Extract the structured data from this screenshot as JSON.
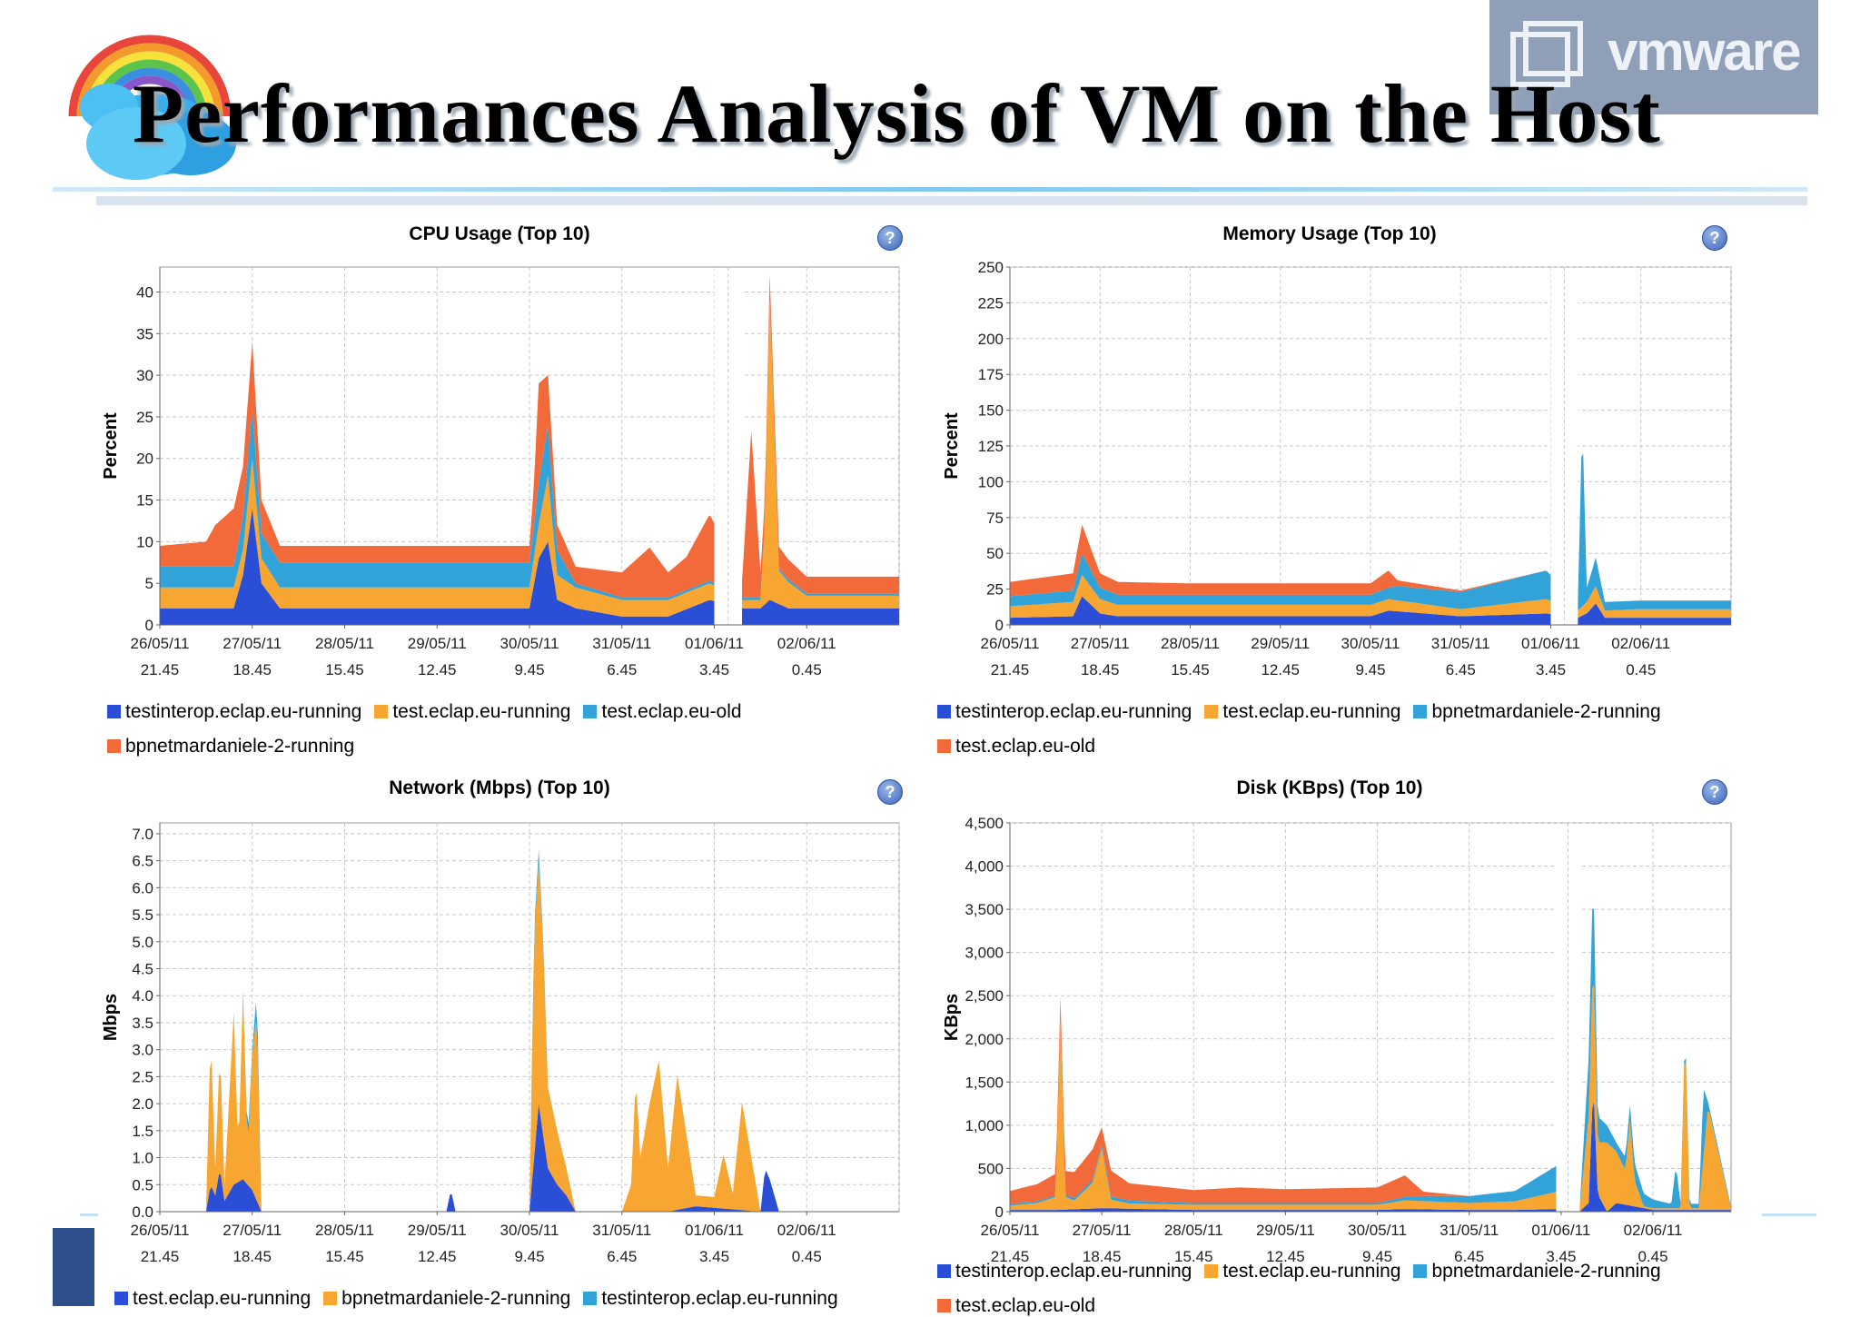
{
  "slide": {
    "title": "Performances Analysis of VM on the Host",
    "vmware_logo": "vmware",
    "colors": {
      "blue": "#2a4fd6",
      "orange": "#f7a631",
      "teal": "#32a3d8",
      "red": "#f26a3a"
    }
  },
  "chart_data": [
    {
      "id": "cpu",
      "type": "area",
      "title": "CPU Usage (Top 10)",
      "ylabel": "Percent",
      "xlabel": "",
      "ylim": [
        0,
        43
      ],
      "yticks": [
        0,
        5,
        10,
        15,
        20,
        25,
        30,
        35,
        40
      ],
      "x_ticks": [
        [
          "26/05/11",
          "21.45"
        ],
        [
          "27/05/11",
          "18.45"
        ],
        [
          "28/05/11",
          "15.45"
        ],
        [
          "29/05/11",
          "12.45"
        ],
        [
          "30/05/11",
          "9.45"
        ],
        [
          "31/05/11",
          "6.45"
        ],
        [
          "01/06/11",
          "3.45"
        ],
        [
          "02/06/11",
          "0.45"
        ]
      ],
      "x_range": [
        0,
        8
      ],
      "gaps": [
        [
          6.0,
          6.3
        ]
      ],
      "grid": true,
      "stacked": true,
      "series": [
        {
          "name": "testinterop.eclap.eu-running",
          "color": "#2a4fd6",
          "x": [
            0,
            0.8,
            0.9,
            1.0,
            1.1,
            1.3,
            2,
            3,
            4,
            4.1,
            4.2,
            4.3,
            4.5,
            5,
            5.5,
            5.95,
            6.3,
            6.5,
            6.6,
            6.8,
            7,
            7.5,
            7.9
          ],
          "y": [
            2,
            2,
            6,
            14,
            5,
            2,
            2,
            2,
            2,
            8,
            10,
            3,
            2,
            1,
            1,
            3,
            2,
            2,
            3,
            2,
            2,
            2,
            2
          ]
        },
        {
          "name": "test.eclap.eu-running",
          "color": "#f7a631",
          "x": [
            0,
            0.8,
            0.9,
            1.0,
            1.1,
            1.3,
            2,
            3,
            4,
            4.1,
            4.2,
            4.3,
            4.5,
            5,
            5.5,
            5.95,
            6.3,
            6.5,
            6.55,
            6.6,
            6.7,
            7,
            7.5,
            7.9
          ],
          "y": [
            2.5,
            2.5,
            3,
            6,
            3,
            2.5,
            2.5,
            2.5,
            2.5,
            4,
            8,
            3,
            2.5,
            2,
            2,
            2,
            1,
            1,
            10,
            36,
            4,
            1.5,
            1.5,
            1.5
          ]
        },
        {
          "name": "test.eclap.eu-old",
          "color": "#32a3d8",
          "x": [
            0,
            0.8,
            0.9,
            1.0,
            1.1,
            1.3,
            2,
            3,
            4,
            4.1,
            4.2,
            4.3,
            4.5,
            5,
            5.5,
            5.95,
            6.3,
            7,
            7.9
          ],
          "y": [
            2.5,
            2.5,
            4,
            6,
            3,
            3,
            3,
            3,
            3,
            5,
            6,
            3,
            0.5,
            0.3,
            0.3,
            0.3,
            0.3,
            0.3,
            0.3
          ]
        },
        {
          "name": "bpnetmardaniele-2-running",
          "color": "#f26a3a",
          "x": [
            0,
            0.5,
            0.6,
            0.8,
            0.9,
            1.0,
            1.1,
            1.3,
            2,
            3,
            4,
            4.05,
            4.1,
            4.2,
            4.3,
            4.5,
            5,
            5.2,
            5.3,
            5.5,
            5.7,
            5.95,
            6.3,
            6.4,
            6.5,
            7,
            7.9
          ],
          "y": [
            2.5,
            3,
            5,
            7,
            6,
            8,
            4,
            2,
            2,
            2,
            2,
            5,
            12,
            6,
            3,
            2,
            3,
            5,
            6,
            3,
            4,
            8,
            2,
            20,
            3,
            2,
            2
          ]
        }
      ]
    },
    {
      "id": "memory",
      "type": "area",
      "title": "Memory Usage (Top 10)",
      "ylabel": "Percent",
      "xlabel": "",
      "ylim": [
        0,
        250
      ],
      "yticks": [
        0,
        25,
        50,
        75,
        100,
        125,
        150,
        175,
        200,
        225,
        250
      ],
      "x_ticks": [
        [
          "26/05/11",
          "21.45"
        ],
        [
          "27/05/11",
          "18.45"
        ],
        [
          "28/05/11",
          "15.45"
        ],
        [
          "29/05/11",
          "12.45"
        ],
        [
          "30/05/11",
          "9.45"
        ],
        [
          "31/05/11",
          "6.45"
        ],
        [
          "01/06/11",
          "3.45"
        ],
        [
          "02/06/11",
          "0.45"
        ]
      ],
      "x_range": [
        0,
        8
      ],
      "gaps": [
        [
          6.0,
          6.3
        ]
      ],
      "grid": true,
      "stacked": true,
      "series": [
        {
          "name": "testinterop.eclap.eu-running",
          "color": "#2a4fd6",
          "x": [
            0,
            0.7,
            0.8,
            1.0,
            1.2,
            2,
            3,
            4,
            4.2,
            5,
            5.95,
            6.3,
            6.4,
            6.5,
            6.6,
            7,
            7.9
          ],
          "y": [
            5,
            6,
            20,
            8,
            6,
            6,
            6,
            6,
            10,
            6,
            8,
            5,
            8,
            15,
            5,
            5,
            5
          ]
        },
        {
          "name": "test.eclap.eu-running",
          "color": "#f7a631",
          "x": [
            0,
            0.7,
            0.8,
            1.0,
            1.2,
            2,
            3,
            4,
            4.2,
            5,
            5.95,
            6.3,
            6.4,
            6.5,
            6.6,
            7,
            7.9
          ],
          "y": [
            8,
            10,
            15,
            10,
            8,
            8,
            8,
            8,
            8,
            5,
            10,
            5,
            8,
            12,
            5,
            6,
            6
          ]
        },
        {
          "name": "bpnetmardaniele-2-running",
          "color": "#32a3d8",
          "x": [
            0,
            0.7,
            0.8,
            1.0,
            1.2,
            2,
            3,
            4,
            4.2,
            4.3,
            5,
            5.95,
            6.3,
            6.35,
            6.4,
            6.5,
            6.6,
            7,
            7.9
          ],
          "y": [
            7,
            8,
            15,
            8,
            7,
            7,
            7,
            7,
            8,
            10,
            12,
            20,
            5,
            130,
            10,
            20,
            6,
            6,
            6
          ]
        },
        {
          "name": "test.eclap.eu-old",
          "color": "#f26a3a",
          "x": [
            0,
            0.7,
            0.8,
            1.0,
            1.2,
            2,
            3,
            4,
            4.2,
            4.3,
            5,
            5.95,
            6.3,
            7,
            7.9
          ],
          "y": [
            10,
            12,
            20,
            10,
            9,
            8,
            8,
            8,
            12,
            4,
            1,
            0,
            0,
            0,
            0
          ]
        }
      ]
    },
    {
      "id": "network",
      "type": "area",
      "title": "Network (Mbps) (Top 10)",
      "ylabel": "Mbps",
      "xlabel": "",
      "ylim": [
        0,
        7.2
      ],
      "yticks": [
        0.0,
        0.5,
        1.0,
        1.5,
        2.0,
        2.5,
        3.0,
        3.5,
        4.0,
        4.5,
        5.0,
        5.5,
        6.0,
        6.5,
        7.0
      ],
      "tick_format": 1,
      "x_ticks": [
        [
          "26/05/11",
          "21.45"
        ],
        [
          "27/05/11",
          "18.45"
        ],
        [
          "28/05/11",
          "15.45"
        ],
        [
          "29/05/11",
          "12.45"
        ],
        [
          "30/05/11",
          "9.45"
        ],
        [
          "31/05/11",
          "6.45"
        ],
        [
          "01/06/11",
          "3.45"
        ],
        [
          "02/06/11",
          "0.45"
        ]
      ],
      "x_range": [
        0,
        8
      ],
      "gaps": [],
      "grid": true,
      "stacked": true,
      "series": [
        {
          "name": "test.eclap.eu-running",
          "color": "#2a4fd6",
          "x": [
            0,
            0.5,
            0.55,
            0.6,
            0.65,
            0.7,
            0.8,
            0.9,
            1.0,
            1.1,
            3.1,
            3.15,
            3.2,
            4.0,
            4.05,
            4.1,
            4.2,
            4.3,
            4.4,
            4.5,
            5.0,
            5.5,
            5.8,
            6.5,
            6.55,
            6.6,
            6.7,
            7.9
          ],
          "y": [
            0,
            0,
            0.5,
            0.3,
            0.8,
            0.2,
            0.5,
            0.6,
            0.4,
            0,
            0,
            0.4,
            0,
            0,
            1.0,
            2.0,
            0.8,
            0.5,
            0.3,
            0,
            0,
            0,
            0.1,
            0,
            0.8,
            0.6,
            0,
            0
          ]
        },
        {
          "name": "bpnetmardaniele-2-running",
          "color": "#f7a631",
          "x": [
            0,
            0.5,
            0.55,
            0.6,
            0.65,
            0.7,
            0.8,
            0.85,
            0.9,
            0.95,
            1.0,
            1.05,
            1.1,
            4.0,
            4.05,
            4.1,
            4.15,
            4.2,
            4.3,
            4.4,
            4.5,
            5.0,
            5.1,
            5.15,
            5.2,
            5.3,
            5.4,
            5.5,
            5.6,
            5.8,
            6.0,
            6.1,
            6.2,
            6.3,
            6.5,
            7.9
          ],
          "y": [
            0,
            0,
            2.8,
            0.5,
            2.2,
            0.3,
            3.2,
            0.5,
            3.5,
            0.6,
            2.5,
            3.5,
            0,
            0,
            4.0,
            4.5,
            3.5,
            1.5,
            1.0,
            0.5,
            0,
            0,
            0.5,
            2.5,
            1.0,
            2.0,
            2.8,
            0.8,
            2.5,
            0.2,
            0.2,
            1.0,
            0.3,
            2.0,
            0,
            0
          ]
        },
        {
          "name": "testinterop.eclap.eu-running",
          "color": "#32a3d8",
          "x": [
            0,
            0.9,
            0.95,
            1.0,
            1.05,
            1.1,
            4.0,
            4.05,
            4.1,
            4.2,
            7.9
          ],
          "y": [
            0,
            0,
            0.2,
            0.1,
            0.4,
            0,
            0,
            0.2,
            0.2,
            0,
            0
          ]
        }
      ]
    },
    {
      "id": "disk",
      "type": "area",
      "title": "Disk (KBps) (Top 10)",
      "ylabel": "KBps",
      "xlabel": "",
      "ylim": [
        0,
        4500
      ],
      "yticks": [
        0,
        500,
        1000,
        1500,
        2000,
        2500,
        3000,
        3500,
        4000,
        4500
      ],
      "tick_format": "comma",
      "x_ticks": [
        [
          "26/05/11",
          "21.45"
        ],
        [
          "27/05/11",
          "18.45"
        ],
        [
          "28/05/11",
          "15.45"
        ],
        [
          "29/05/11",
          "12.45"
        ],
        [
          "30/05/11",
          "9.45"
        ],
        [
          "31/05/11",
          "6.45"
        ],
        [
          "01/06/11",
          "3.45"
        ],
        [
          "02/06/11",
          "0.45"
        ]
      ],
      "x_range": [
        0,
        7.85
      ],
      "gaps": [
        [
          5.95,
          6.2
        ]
      ],
      "grid": true,
      "stacked": true,
      "series": [
        {
          "name": "testinterop.eclap.eu-running",
          "color": "#2a4fd6",
          "x": [
            0,
            0.5,
            1.0,
            2,
            3,
            4,
            4.3,
            5,
            5.5,
            5.95,
            6.2,
            6.3,
            6.35,
            6.4,
            6.5,
            6.6,
            7,
            7.85
          ],
          "y": [
            20,
            20,
            40,
            20,
            20,
            20,
            30,
            20,
            20,
            30,
            0,
            100,
            1500,
            200,
            0,
            100,
            20,
            20
          ]
        },
        {
          "name": "test.eclap.eu-running",
          "color": "#f7a631",
          "x": [
            0,
            0.3,
            0.5,
            0.55,
            0.6,
            0.7,
            0.9,
            1.0,
            1.1,
            1.3,
            2,
            3,
            4,
            4.3,
            5,
            5.5,
            5.95,
            6.2,
            6.35,
            6.4,
            6.5,
            6.6,
            6.7,
            6.75,
            6.8,
            6.9,
            7.3,
            7.35,
            7.4,
            7.5,
            7.6,
            7.85
          ],
          "y": [
            50,
            80,
            150,
            2200,
            150,
            100,
            300,
            700,
            100,
            60,
            60,
            60,
            60,
            100,
            80,
            100,
            200,
            0,
            1500,
            600,
            800,
            600,
            400,
            1000,
            300,
            20,
            20,
            2100,
            20,
            20,
            1200,
            20
          ]
        },
        {
          "name": "bpnetmardaniele-2-running",
          "color": "#32a3d8",
          "x": [
            0,
            0.5,
            1.0,
            2,
            3,
            4,
            4.3,
            4.5,
            5,
            5.5,
            5.95,
            6.2,
            6.35,
            6.4,
            6.5,
            6.6,
            6.8,
            7,
            7.2,
            7.25,
            7.3,
            7.5,
            7.55,
            7.6,
            7.85
          ],
          "y": [
            20,
            20,
            40,
            20,
            20,
            20,
            40,
            60,
            80,
            120,
            300,
            0,
            1000,
            300,
            200,
            100,
            200,
            100,
            50,
            500,
            50,
            50,
            800,
            50,
            20
          ]
        },
        {
          "name": "test.eclap.eu-old",
          "color": "#f26a3a",
          "x": [
            0,
            0.3,
            0.5,
            0.7,
            0.9,
            1.0,
            1.1,
            1.3,
            2,
            2.5,
            3,
            3.5,
            4,
            4.3,
            4.4,
            4.5,
            5,
            5.95,
            7.85
          ],
          "y": [
            150,
            200,
            250,
            300,
            350,
            200,
            300,
            200,
            150,
            180,
            160,
            170,
            180,
            250,
            150,
            50,
            0,
            0,
            0
          ]
        }
      ]
    }
  ],
  "legends": [
    {
      "id": "cpu",
      "rows": [
        [
          {
            "label": "testinterop.eclap.eu-running",
            "color": "#2a4fd6"
          },
          {
            "label": "test.eclap.eu-running",
            "color": "#f7a631"
          },
          {
            "label": "test.eclap.eu-old",
            "color": "#32a3d8"
          }
        ],
        [
          {
            "label": "bpnetmardaniele-2-running",
            "color": "#f26a3a"
          }
        ]
      ]
    },
    {
      "id": "memory",
      "rows": [
        [
          {
            "label": "testinterop.eclap.eu-running",
            "color": "#2a4fd6"
          },
          {
            "label": "test.eclap.eu-running",
            "color": "#f7a631"
          },
          {
            "label": "bpnetmardaniele-2-running",
            "color": "#32a3d8"
          }
        ],
        [
          {
            "label": "test.eclap.eu-old",
            "color": "#f26a3a"
          }
        ]
      ]
    },
    {
      "id": "network",
      "rows": [
        [
          {
            "label": "test.eclap.eu-running",
            "color": "#2a4fd6"
          },
          {
            "label": "bpnetmardaniele-2-running",
            "color": "#f7a631"
          },
          {
            "label": "testinterop.eclap.eu-running",
            "color": "#32a3d8"
          }
        ]
      ]
    },
    {
      "id": "disk",
      "rows": [
        [
          {
            "label": "testinterop.eclap.eu-running",
            "color": "#2a4fd6"
          },
          {
            "label": "test.eclap.eu-running",
            "color": "#f7a631"
          },
          {
            "label": "bpnetmardaniele-2-running",
            "color": "#32a3d8"
          }
        ],
        [
          {
            "label": "test.eclap.eu-old",
            "color": "#f26a3a"
          }
        ]
      ]
    }
  ],
  "help_icon": "help-icon"
}
